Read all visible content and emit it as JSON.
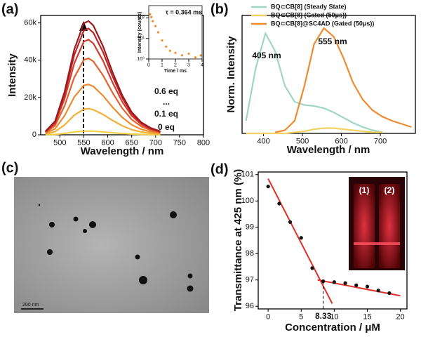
{
  "chart_data": [
    {
      "type": "line",
      "panel_label": "(a)",
      "x_label": "Wavelength / nm",
      "y_label": "Intensity",
      "x": [
        470,
        490,
        510,
        530,
        550,
        560,
        570,
        590,
        610,
        630,
        650,
        670,
        690,
        710
      ],
      "series": [
        {
          "name": "0 eq",
          "color": "#f3cf4a",
          "values": [
            60,
            240,
            760,
            1500,
            1960,
            2000,
            1920,
            1560,
            1100,
            700,
            400,
            220,
            120,
            60
          ]
        },
        {
          "name": "0.1 eq",
          "color": "#f2b03a",
          "values": [
            420,
            1680,
            5320,
            10500,
            13720,
            14000,
            13440,
            10920,
            7700,
            4900,
            2800,
            1540,
            840,
            420
          ]
        },
        {
          "color": "#ec8a2e",
          "values": [
            810,
            3240,
            10260,
            20250,
            26460,
            27000,
            25920,
            21060,
            14850,
            9450,
            5400,
            2970,
            1620,
            810
          ]
        },
        {
          "color": "#e4612b",
          "values": [
            1230,
            4920,
            15580,
            30750,
            40180,
            41000,
            39360,
            31980,
            22550,
            14350,
            8200,
            4510,
            2460,
            1230
          ]
        },
        {
          "color": "#d63a2c",
          "values": [
            1530,
            6120,
            19380,
            38250,
            49980,
            51000,
            48960,
            39780,
            28050,
            17850,
            10200,
            5610,
            3060,
            1530
          ]
        },
        {
          "color": "#bb2526",
          "values": [
            1710,
            6840,
            21660,
            42750,
            55860,
            57000,
            54720,
            44460,
            31350,
            19950,
            11400,
            6270,
            3420,
            1710
          ]
        },
        {
          "name": "0.6 eq",
          "color": "#9c1a1e",
          "values": [
            1830,
            7320,
            23180,
            45750,
            59780,
            61000,
            58560,
            47580,
            33550,
            21350,
            12200,
            6710,
            3660,
            1830
          ]
        }
      ],
      "annotations": [
        "0.6 eq",
        "...",
        "0.1 eq",
        "0 eq"
      ],
      "xlim": [
        460,
        800
      ],
      "xticks": [
        500,
        550,
        600,
        650,
        700,
        750,
        800
      ],
      "ylim": [
        0,
        64000
      ],
      "yticks": [
        0,
        {
          "value": 20000,
          "label": "20k"
        },
        {
          "value": 40000,
          "label": "40k"
        },
        {
          "value": 60000,
          "label": "60k"
        }
      ]
    },
    {
      "type": "scatter",
      "x_label": "Time / ms",
      "y_label": "Intensity (counts)",
      "log_y": true,
      "color": "#f0902f",
      "x": [
        0.1,
        0.2,
        0.3,
        0.5,
        0.7,
        1.0,
        1.3,
        1.6,
        2.0,
        2.5,
        3.0,
        3.5,
        3.9
      ],
      "values": [
        150,
        110,
        70,
        40,
        20,
        8,
        4,
        2.5,
        2,
        1.5,
        1.8,
        1.2,
        1.5
      ],
      "annotations": [
        "τ = 0.364 ms"
      ],
      "xlim": [
        0,
        4
      ],
      "xticks": [
        0,
        1,
        2,
        3,
        4
      ],
      "ylim": [
        1,
        400
      ],
      "yticks": [
        {
          "value": 1,
          "label": "10⁰"
        },
        {
          "value": 10,
          "label": "10¹"
        },
        {
          "value": 100,
          "label": "10²"
        }
      ]
    },
    {
      "type": "line",
      "panel_label": "(b)",
      "x_label": "Wavelength / nm",
      "y_label": "Norm. Intensity",
      "x": [
        355,
        380,
        405,
        430,
        455,
        480,
        505,
        530,
        555,
        580,
        605,
        630,
        655,
        680,
        705,
        730,
        755,
        780
      ],
      "series": [
        {
          "name": "BQ⊂CB[8] (Steady State)",
          "color": "#9fd6c6",
          "values": [
            0.12,
            0.62,
            0.95,
            0.78,
            0.45,
            0.3,
            0.27,
            0.26,
            0.24,
            0.2,
            0.15,
            0.1,
            0.06,
            0.03,
            0.01,
            null,
            null,
            null
          ]
        },
        {
          "name": "BQ⊂CB[8] (Gated (50μs))",
          "color": "#f2d365",
          "values": [
            0,
            0,
            0,
            0,
            0,
            0.01,
            0.02,
            0.04,
            0.05,
            0.05,
            0.04,
            0.03,
            0.02,
            0.01,
            0.01,
            null,
            null,
            null
          ]
        },
        {
          "name": "BQ⊂CB[8]@SC4AD (Gated (50μs))",
          "color": "#f08a30",
          "values": [
            null,
            null,
            null,
            0.01,
            0.03,
            0.12,
            0.45,
            0.85,
            1.0,
            0.92,
            0.72,
            0.48,
            0.32,
            0.22,
            0.16,
            0.12,
            0.09,
            0.06
          ]
        }
      ],
      "annotations": [
        "405 nm",
        "555 nm"
      ],
      "xlim": [
        345,
        790
      ],
      "xticks": [
        400,
        500,
        600,
        700
      ],
      "ylim": [
        0,
        1.12
      ]
    },
    {
      "type": "scatter",
      "panel_label": "(d)",
      "x_label": "Concentration / μM",
      "y_label": "Transmittance at 425 nm (%)",
      "color": "#111111",
      "x": [
        0,
        1.67,
        3.33,
        5,
        6.67,
        8.33,
        10,
        11.67,
        13.33,
        15,
        16.67,
        18.33
      ],
      "values": [
        100.55,
        99.9,
        99.2,
        98.6,
        97.45,
        96.95,
        96.92,
        96.88,
        96.8,
        96.75,
        96.6,
        96.5
      ],
      "fits": [
        {
          "color": "#e0302a",
          "x": [
            0,
            9.7
          ],
          "values": [
            100.85,
            96.1
          ]
        },
        {
          "color": "#e0302a",
          "x": [
            7.5,
            20
          ],
          "values": [
            97.0,
            96.4
          ]
        }
      ],
      "annotations": [
        "8.33"
      ],
      "inset_labels": [
        "(1)",
        "(2)"
      ],
      "xlim": [
        -1.5,
        21
      ],
      "xticks": [
        0,
        5,
        10,
        15,
        20
      ],
      "ylim": [
        95.9,
        101.1
      ],
      "yticks": [
        96,
        97,
        98,
        99,
        100,
        101
      ]
    }
  ],
  "image_panel": {
    "panel_label": "(c)",
    "scale_bar": "200 nm"
  }
}
